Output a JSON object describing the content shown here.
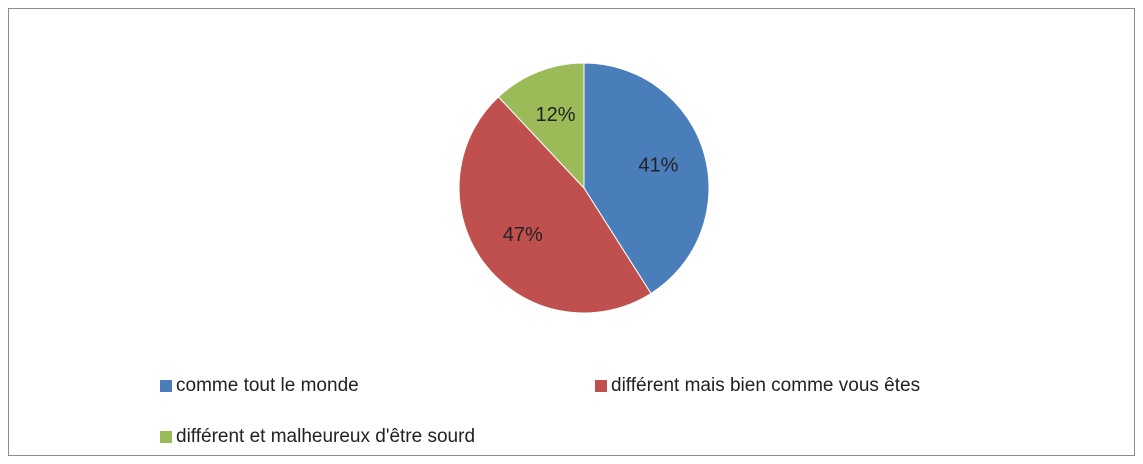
{
  "chart_data": {
    "type": "pie",
    "categories": [
      "comme tout le monde",
      "différent mais bien comme vous êtes",
      "différent et malheureux d'être sourd"
    ],
    "values": [
      41,
      47,
      12
    ],
    "value_labels": [
      "41%",
      "47%",
      "12%"
    ],
    "colors": [
      "#4a7ebb",
      "#c0504d",
      "#9bbb59"
    ],
    "legend": "bottom"
  }
}
